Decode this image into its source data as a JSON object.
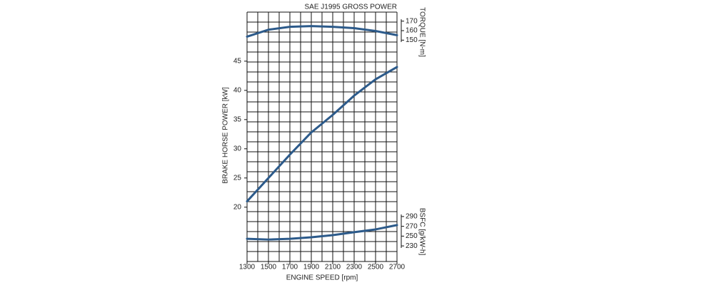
{
  "chart_data": {
    "type": "line",
    "title": "SAE J1995 GROSS POWER",
    "x_label": "ENGINE SPEED [rpm]",
    "y_label": "BRAKE HORSE POWER [kW]",
    "y2_label": "TORQUE [N-m]",
    "y3_label": "BSFC [g/kW-h]",
    "x": [
      1300,
      1500,
      1700,
      1900,
      2100,
      2300,
      2500,
      2700
    ],
    "xlim": [
      1300,
      2700
    ],
    "xticks": [
      1300,
      1500,
      1700,
      1900,
      2100,
      2300,
      2500,
      2700
    ],
    "ylim": [
      10.7,
      53.4
    ],
    "yticks": [
      20,
      25,
      30,
      35,
      40,
      45
    ],
    "y2lim": [
      145,
      175
    ],
    "y2ticks": [
      150,
      160,
      170
    ],
    "y3lim": [
      220,
      300
    ],
    "y3ticks": [
      230,
      250,
      270,
      290
    ],
    "grid": true,
    "series": [
      {
        "name": "Power",
        "color": "#2c5a8a",
        "axis": "y",
        "values": [
          21,
          25,
          29,
          32.8,
          35.8,
          39.1,
          41.9,
          44
        ]
      },
      {
        "name": "Torque",
        "color": "#2c5a8a",
        "axis": "y2",
        "values": [
          153.7,
          161,
          164,
          164.8,
          164,
          162.6,
          159.6,
          155.2
        ]
      },
      {
        "name": "BSFC",
        "color": "#2c5a8a",
        "axis": "y3",
        "values": [
          244.6,
          243,
          244.6,
          247.6,
          252,
          258,
          263.7,
          272.5
        ]
      }
    ]
  }
}
